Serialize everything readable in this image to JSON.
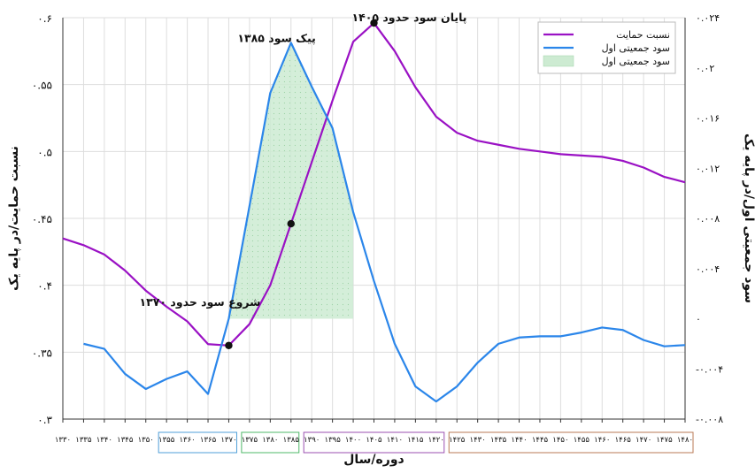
{
  "chart_data": {
    "type": "line",
    "xlabel": "دوره/سال",
    "ylabel_left": "نسبت حمایت/در پایه یک",
    "ylabel_right": "سود جمعیتی اول/در پایه یک",
    "x": [
      1330,
      1335,
      1340,
      1345,
      1350,
      1355,
      1360,
      1365,
      1370,
      1375,
      1380,
      1385,
      1390,
      1395,
      1400,
      1405,
      1410,
      1415,
      1420,
      1425,
      1430,
      1435,
      1440,
      1445,
      1450,
      1455,
      1460,
      1465,
      1470,
      1475,
      1480
    ],
    "x_tick_labels": [
      "۱۳۳۰",
      "۱۳۳۵",
      "۱۳۴۰",
      "۱۳۴۵",
      "۱۳۵۰",
      "۱۳۵۵",
      "۱۳۶۰",
      "۱۳۶۵",
      "۱۳۷۰",
      "۱۳۷۵",
      "۱۳۸۰",
      "۱۳۸۵",
      "۱۳۹۰",
      "۱۳۹۵",
      "۱۴۰۰",
      "۱۴۰۵",
      "۱۴۱۰",
      "۱۴۱۵",
      "۱۴۲۰",
      "۱۴۲۵",
      "۱۴۳۰",
      "۱۴۳۵",
      "۱۴۴۰",
      "۱۴۴۵",
      "۱۴۵۰",
      "۱۴۵۵",
      "۱۴۶۰",
      "۱۴۶۵",
      "۱۴۷۰",
      "۱۴۷۵",
      "۱۴۸۰"
    ],
    "y_left_ticks": [
      {
        "value": 0.3,
        "label": "۰.۳"
      },
      {
        "value": 0.35,
        "label": "۰.۳۵"
      },
      {
        "value": 0.4,
        "label": "۰.۴"
      },
      {
        "value": 0.45,
        "label": "۰.۴۵"
      },
      {
        "value": 0.5,
        "label": "۰.۵"
      },
      {
        "value": 0.55,
        "label": "۰.۵۵"
      },
      {
        "value": 0.6,
        "label": "۰.۶"
      }
    ],
    "ylim_left": [
      0.3,
      0.6
    ],
    "y_right_ticks": [
      {
        "value": -0.008,
        "label": "-۰.۰۰۸"
      },
      {
        "value": -0.004,
        "label": "-۰.۰۰۴"
      },
      {
        "value": 0,
        "label": "۰"
      },
      {
        "value": 0.004,
        "label": "۰.۰۰۴"
      },
      {
        "value": 0.008,
        "label": "۰.۰۰۸"
      },
      {
        "value": 0.012,
        "label": "۰.۰۱۲"
      },
      {
        "value": 0.016,
        "label": "۰.۰۱۶"
      },
      {
        "value": 0.02,
        "label": "۰.۰۲"
      },
      {
        "value": 0.024,
        "label": "۰.۰۲۴"
      }
    ],
    "ylim_right": [
      -0.008,
      0.024
    ],
    "grid": true,
    "legend_position": "top-right",
    "legend": [
      {
        "label": "نسبت حمایت",
        "color": "#9a11c4",
        "kind": "line"
      },
      {
        "label": "سود جمعیتی اول",
        "color": "#2b86ea",
        "kind": "line"
      },
      {
        "label": "سود جمعیتی اول",
        "color": "#cdebd2",
        "kind": "area"
      }
    ],
    "series": [
      {
        "name": "نسبت حمایت",
        "axis": "left",
        "color": "#9a11c4",
        "x": [
          1330,
          1335,
          1340,
          1345,
          1350,
          1355,
          1360,
          1365,
          1370,
          1375,
          1380,
          1385,
          1390,
          1395,
          1400,
          1405,
          1410,
          1415,
          1420,
          1425,
          1430,
          1435,
          1440,
          1445,
          1450,
          1455,
          1460,
          1465,
          1470,
          1475,
          1480
        ],
        "values": [
          0.435,
          0.43,
          0.423,
          0.411,
          0.396,
          0.384,
          0.373,
          0.356,
          0.355,
          0.371,
          0.4,
          0.446,
          0.492,
          0.538,
          0.582,
          0.596,
          0.575,
          0.548,
          0.526,
          0.514,
          0.508,
          0.505,
          0.502,
          0.5,
          0.498,
          0.497,
          0.496,
          0.493,
          0.488,
          0.481,
          0.477
        ]
      },
      {
        "name": "سود جمعیتی اول",
        "axis": "right",
        "color": "#2b86ea",
        "x": [
          1335,
          1340,
          1345,
          1350,
          1355,
          1360,
          1365,
          1370,
          1375,
          1380,
          1385,
          1390,
          1395,
          1400,
          1405,
          1410,
          1415,
          1420,
          1425,
          1430,
          1435,
          1440,
          1445,
          1450,
          1455,
          1460,
          1465,
          1470,
          1475,
          1480
        ],
        "values": [
          -0.002,
          -0.0024,
          -0.0044,
          -0.0056,
          -0.0048,
          -0.0042,
          -0.006,
          0.0,
          0.009,
          0.018,
          0.022,
          0.0185,
          0.0152,
          0.0085,
          0.003,
          -0.002,
          -0.0054,
          -0.0066,
          -0.0054,
          -0.0035,
          -0.002,
          -0.0015,
          -0.0014,
          -0.0014,
          -0.0011,
          -0.0007,
          -0.0009,
          -0.0017,
          -0.0022,
          -0.0021
        ]
      }
    ],
    "shaded_area": {
      "series": "سود جمعیتی اول",
      "x_from": 1370,
      "x_to": 1400,
      "color": "#cdebd2"
    },
    "annotations": [
      {
        "text": "شروع سود حدود ۱۳۷۰",
        "x": 1370,
        "y": 0.355,
        "axis": "left",
        "point": true
      },
      {
        "text": "",
        "x": 1385,
        "y": 0.446,
        "axis": "left",
        "point": true
      },
      {
        "text": "پیک سود ۱۳۸۵",
        "x": 1385,
        "y": 0.022,
        "axis": "right",
        "point": false
      },
      {
        "text": "پایان سود حدود ۱۴۰۵",
        "x": 1405,
        "y": 0.596,
        "axis": "left",
        "point": true
      }
    ],
    "period_boxes": [
      {
        "from": 1330,
        "to": 1350,
        "color": "#ffffff",
        "border": "#ffffff"
      },
      {
        "from": 1355,
        "to": 1370,
        "color": "#ffffff",
        "border": "#4f9fd8"
      },
      {
        "from": 1375,
        "to": 1385,
        "color": "#ffffff",
        "border": "#4fb86a"
      },
      {
        "from": 1390,
        "to": 1420,
        "color": "#ffffff",
        "border": "#9b4fb0"
      },
      {
        "from": 1425,
        "to": 1480,
        "color": "#ffffff",
        "border": "#b87a55"
      }
    ]
  }
}
